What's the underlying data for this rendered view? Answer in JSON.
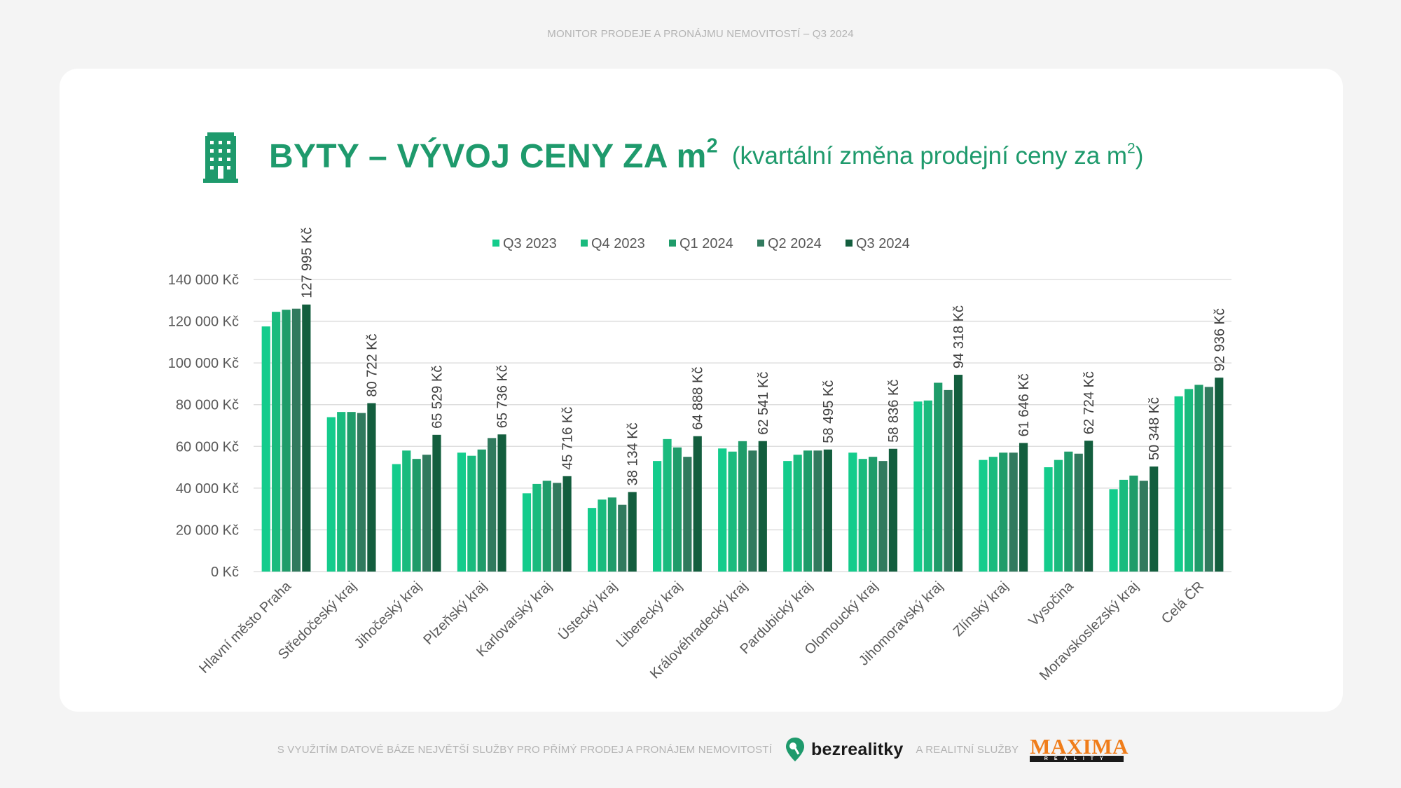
{
  "header": {
    "caption": "MONITOR PRODEJE A PRONÁJMU NEMOVITOSTÍ – Q3 2024"
  },
  "title": {
    "icon": "apartment-building-icon",
    "main": "BYTY – VÝVOJ CENY ZA m",
    "main_sup": "2",
    "sub_open": "(kvartální změna prodejní ceny za m",
    "sub_sup": "2",
    "sub_close": ")"
  },
  "chart_data": {
    "type": "bar",
    "legend_position": "top-center",
    "grid": true,
    "ylim": [
      0,
      140000
    ],
    "yticks": [
      0,
      20000,
      40000,
      60000,
      80000,
      100000,
      120000,
      140000
    ],
    "ytick_labels": [
      "0 Kč",
      "20 000 Kč",
      "40 000 Kč",
      "60 000 Kč",
      "80 000 Kč",
      "100 000 Kč",
      "120 000 Kč",
      "140 000 Kč"
    ],
    "categories": [
      "Hlavní město Praha",
      "Středočeský kraj",
      "Jihočeský kraj",
      "Plzeňský kraj",
      "Karlovarský kraj",
      "Ústecký kraj",
      "Liberecký kraj",
      "Královéhradecký kraj",
      "Pardubický kraj",
      "Olomoucký kraj",
      "Jihomoravský kraj",
      "Zlínský kraj",
      "Vysočina",
      "Moravskoslezský kraj",
      "Celá ČR"
    ],
    "series": [
      {
        "name": "Q3 2023",
        "color": "#14cc8c",
        "values": [
          117500,
          74000,
          51500,
          57000,
          37500,
          30500,
          53000,
          59000,
          53000,
          57000,
          81500,
          53500,
          50000,
          39500,
          84000
        ]
      },
      {
        "name": "Q4 2023",
        "color": "#1abb7e",
        "values": [
          124500,
          76500,
          58000,
          55500,
          42000,
          34500,
          63500,
          57500,
          56000,
          54000,
          82000,
          55000,
          53500,
          44000,
          87500
        ]
      },
      {
        "name": "Q1 2024",
        "color": "#1f9c6a",
        "values": [
          125500,
          76500,
          54000,
          58500,
          43500,
          35500,
          59500,
          62500,
          58000,
          55000,
          90500,
          57000,
          57500,
          46000,
          89500
        ]
      },
      {
        "name": "Q2 2024",
        "color": "#317a5e",
        "values": [
          126000,
          76000,
          56000,
          64000,
          42500,
          32000,
          55000,
          58000,
          58000,
          53000,
          87000,
          57000,
          56500,
          43500,
          88500
        ]
      },
      {
        "name": "Q3 2024",
        "color": "#135e3e",
        "values": [
          127995,
          80722,
          65529,
          65736,
          45716,
          38134,
          64888,
          62541,
          58495,
          58836,
          94318,
          61646,
          62724,
          50348,
          92936
        ]
      }
    ],
    "data_labels": [
      "127 995 Kč",
      "80 722 Kč",
      "65 529 Kč",
      "65 736 Kč",
      "45 716 Kč",
      "38 134 Kč",
      "64 888 Kč",
      "62 541 Kč",
      "58 495 Kč",
      "58 836 Kč",
      "94 318 Kč",
      "61 646 Kč",
      "62 724 Kč",
      "50 348 Kč",
      "92 936 Kč"
    ]
  },
  "footer": {
    "left_text": "S VYUŽITÍM DATOVÉ BÁZE NEJVĚTŠÍ SLUŽBY PRO PŘÍMÝ PRODEJ A PRONÁJEM NEMOVITOSTÍ",
    "brand_icon": "map-pin-icon",
    "brand_name": "bezrealitky",
    "middle_text": "A REALITNÍ SLUŽBY",
    "logo_word": "MAXIMA",
    "logo_sub": "REALITY"
  },
  "colors": {
    "accent": "#1e9a6c",
    "grid": "#d9d9d9",
    "text": "#595959"
  }
}
